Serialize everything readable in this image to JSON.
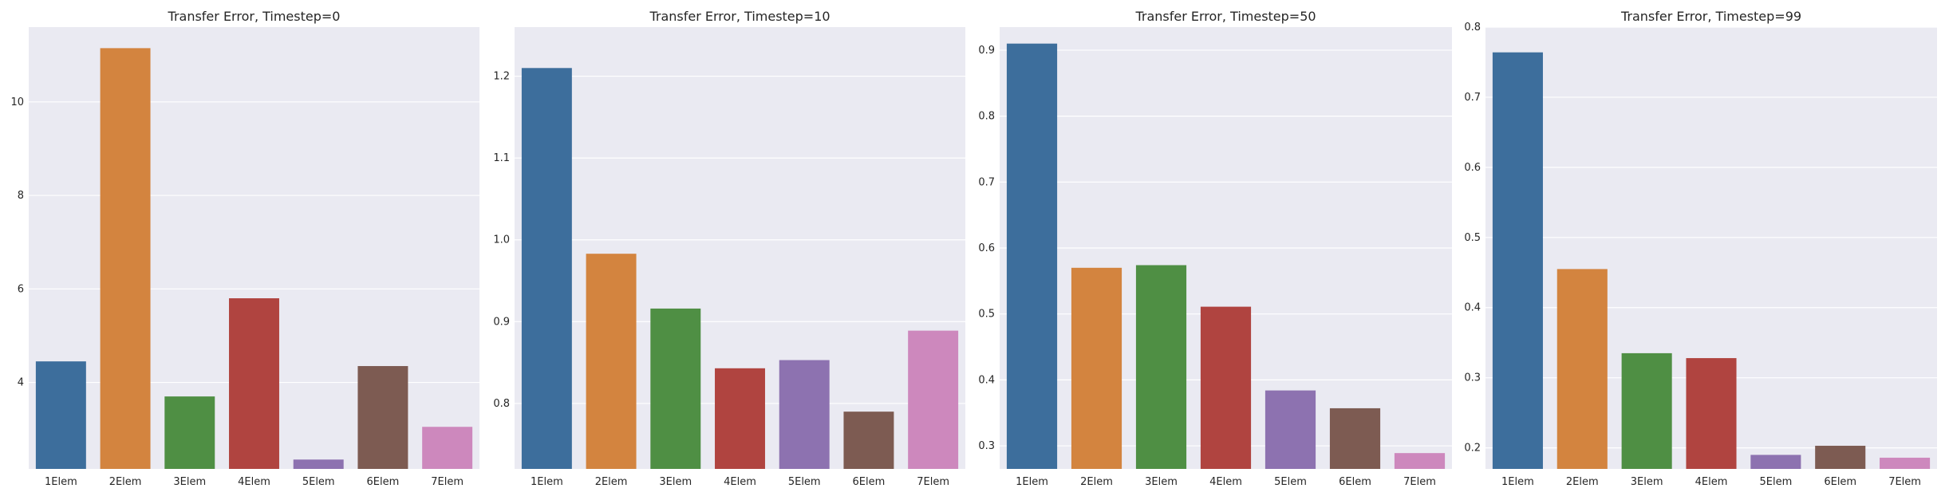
{
  "figure": {
    "colors": [
      "#3d6e9c",
      "#d3843f",
      "#4f8f44",
      "#b04440",
      "#8d72b0",
      "#7d5b52",
      "#cd88bd"
    ],
    "plot_background": "#eaeaf2",
    "grid_color": "#ffffff"
  },
  "chart_data": [
    {
      "type": "bar",
      "title": "Transfer Error, Timestep=0",
      "xlabel": "",
      "ylabel": "",
      "categories": [
        "1Elem",
        "2Elem",
        "3Elem",
        "4Elem",
        "5Elem",
        "6Elem",
        "7Elem"
      ],
      "values": [
        4.45,
        11.15,
        3.7,
        5.8,
        2.35,
        4.35,
        3.05
      ],
      "ylim": [
        2.15,
        11.6
      ],
      "yticks": [
        4,
        6,
        8,
        10
      ],
      "ytick_labels": [
        "4",
        "6",
        "8",
        "10"
      ],
      "grid": true
    },
    {
      "type": "bar",
      "title": "Transfer Error, Timestep=10",
      "xlabel": "",
      "ylabel": "",
      "categories": [
        "1Elem",
        "2Elem",
        "3Elem",
        "4Elem",
        "5Elem",
        "6Elem",
        "7Elem"
      ],
      "values": [
        1.21,
        0.983,
        0.916,
        0.843,
        0.853,
        0.79,
        0.889
      ],
      "ylim": [
        0.72,
        1.26
      ],
      "yticks": [
        0.8,
        0.9,
        1.0,
        1.1,
        1.2
      ],
      "ytick_labels": [
        "0.8",
        "0.9",
        "1.0",
        "1.1",
        "1.2"
      ],
      "grid": true
    },
    {
      "type": "bar",
      "title": "Transfer Error, Timestep=50",
      "xlabel": "",
      "ylabel": "",
      "categories": [
        "1Elem",
        "2Elem",
        "3Elem",
        "4Elem",
        "5Elem",
        "6Elem",
        "7Elem"
      ],
      "values": [
        0.91,
        0.57,
        0.574,
        0.511,
        0.384,
        0.357,
        0.289
      ],
      "ylim": [
        0.265,
        0.935
      ],
      "yticks": [
        0.3,
        0.4,
        0.5,
        0.6,
        0.7,
        0.8,
        0.9
      ],
      "ytick_labels": [
        "0.3",
        "0.4",
        "0.5",
        "0.6",
        "0.7",
        "0.8",
        "0.9"
      ],
      "grid": true
    },
    {
      "type": "bar",
      "title": "Transfer Error, Timestep=99",
      "xlabel": "",
      "ylabel": "",
      "categories": [
        "1Elem",
        "2Elem",
        "3Elem",
        "4Elem",
        "5Elem",
        "6Elem",
        "7Elem"
      ],
      "values": [
        0.764,
        0.455,
        0.335,
        0.328,
        0.19,
        0.203,
        0.186
      ],
      "ylim": [
        0.17,
        0.8
      ],
      "yticks": [
        0.2,
        0.3,
        0.4,
        0.5,
        0.6,
        0.7,
        0.8
      ],
      "ytick_labels": [
        "0.2",
        "0.3",
        "0.4",
        "0.5",
        "0.6",
        "0.7",
        "0.8"
      ],
      "grid": true
    }
  ]
}
